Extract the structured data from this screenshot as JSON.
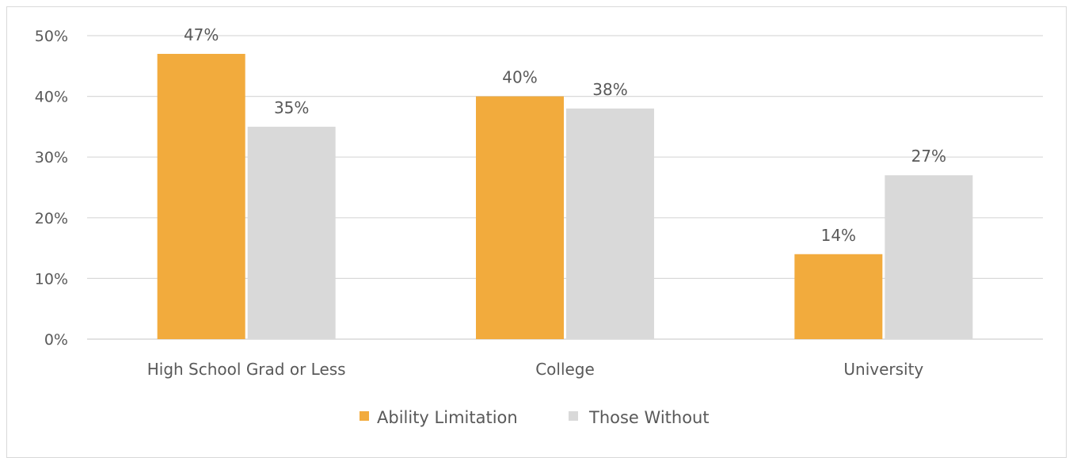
{
  "chart_data": {
    "type": "bar",
    "categories": [
      "High School Grad or Less",
      "College",
      "University"
    ],
    "series": [
      {
        "name": "Ability Limitation",
        "values": [
          47,
          40,
          14
        ],
        "color": "#f2ab3d"
      },
      {
        "name": "Those Without",
        "values": [
          35,
          38,
          27
        ],
        "color": "#d9d9d9"
      }
    ],
    "data_labels": [
      [
        "47%",
        "40%",
        "14%"
      ],
      [
        "35%",
        "38%",
        "27%"
      ]
    ],
    "ylim": [
      0,
      50
    ],
    "yticks": [
      0,
      10,
      20,
      30,
      40,
      50
    ],
    "ytick_labels": [
      "0%",
      "10%",
      "20%",
      "30%",
      "40%",
      "50%"
    ],
    "grid": true,
    "legend": "bottom",
    "gridline_color": "#d9d9d9",
    "text_color": "#595959"
  }
}
